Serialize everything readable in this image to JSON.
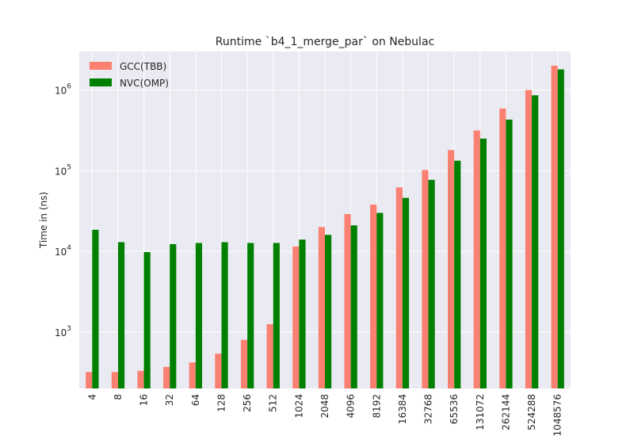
{
  "chart_data": {
    "type": "bar",
    "title": "Runtime `b4_1_merge_par` on Nebulac",
    "xlabel": "",
    "ylabel": "Time in (ns)",
    "yscale": "log",
    "ylim": [
      200,
      3000000
    ],
    "grid": true,
    "legend_position": "upper-left",
    "categories": [
      "4",
      "8",
      "16",
      "32",
      "64",
      "128",
      "256",
      "512",
      "1024",
      "2048",
      "4096",
      "8192",
      "16384",
      "32768",
      "65536",
      "131072",
      "262144",
      "524288",
      "1048576"
    ],
    "series": [
      {
        "name": "GCC(TBB)",
        "color": "#fa8072",
        "values": [
          320,
          320,
          330,
          370,
          420,
          540,
          800,
          1250,
          11500,
          20000,
          29000,
          38000,
          62000,
          102000,
          180000,
          315000,
          590000,
          1000000,
          2000000
        ]
      },
      {
        "name": "NVC(OMP)",
        "color": "#008000",
        "values": [
          18500,
          13000,
          9800,
          12300,
          12700,
          13000,
          12700,
          12700,
          14000,
          16000,
          21000,
          30000,
          46000,
          77000,
          133000,
          250000,
          430000,
          860000,
          1800000
        ]
      }
    ],
    "y_ticks": [
      {
        "value": 1000,
        "base": "10",
        "exp": "3"
      },
      {
        "value": 10000,
        "base": "10",
        "exp": "4"
      },
      {
        "value": 100000,
        "base": "10",
        "exp": "5"
      },
      {
        "value": 1000000,
        "base": "10",
        "exp": "6"
      }
    ]
  },
  "colors": {
    "plot_background": "#eaeaf2",
    "grid": "#ffffff"
  }
}
